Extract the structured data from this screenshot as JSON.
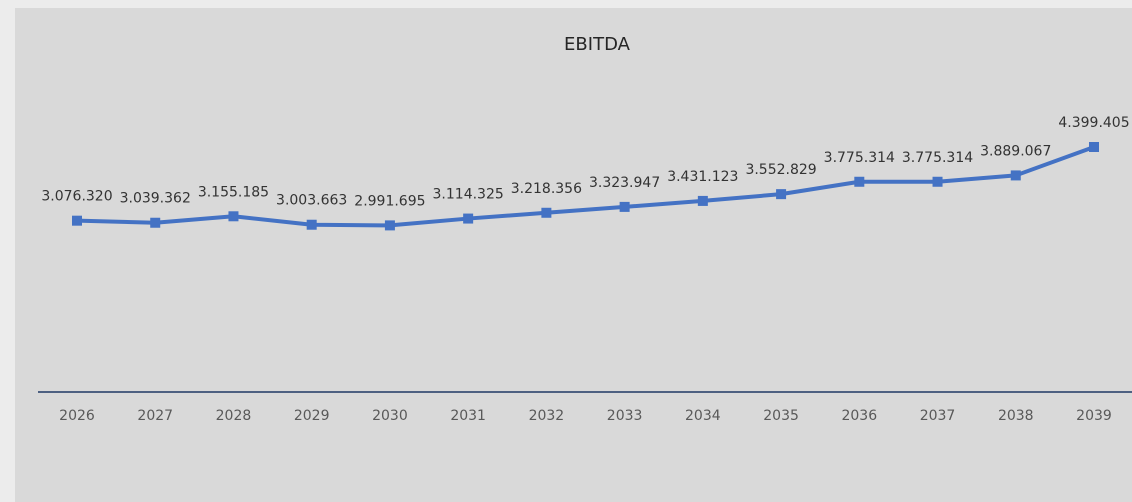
{
  "chart_data": {
    "type": "line",
    "title": "EBITDA",
    "categories": [
      "2026",
      "2027",
      "2028",
      "2029",
      "2030",
      "2031",
      "2032",
      "2033",
      "2034",
      "2035",
      "2036",
      "2037",
      "2038",
      "2039"
    ],
    "series": [
      {
        "name": "EBITDA",
        "color": "#4472c4",
        "values": [
          3076320,
          3039362,
          3155185,
          3003663,
          2991695,
          3114325,
          3218356,
          3323947,
          3431123,
          3552829,
          3775314,
          3775314,
          3889067,
          4399405
        ],
        "value_labels": [
          "3.076.320",
          "3.039.362",
          "3.155.185",
          "3.003.663",
          "2.991.695",
          "3.114.325",
          "3.218.356",
          "3.323.947",
          "3.431.123",
          "3.552.829",
          "3.775.314",
          "3.775.314",
          "3.889.067",
          "4.399.405"
        ]
      }
    ],
    "axis_color": "#1f3864"
  }
}
